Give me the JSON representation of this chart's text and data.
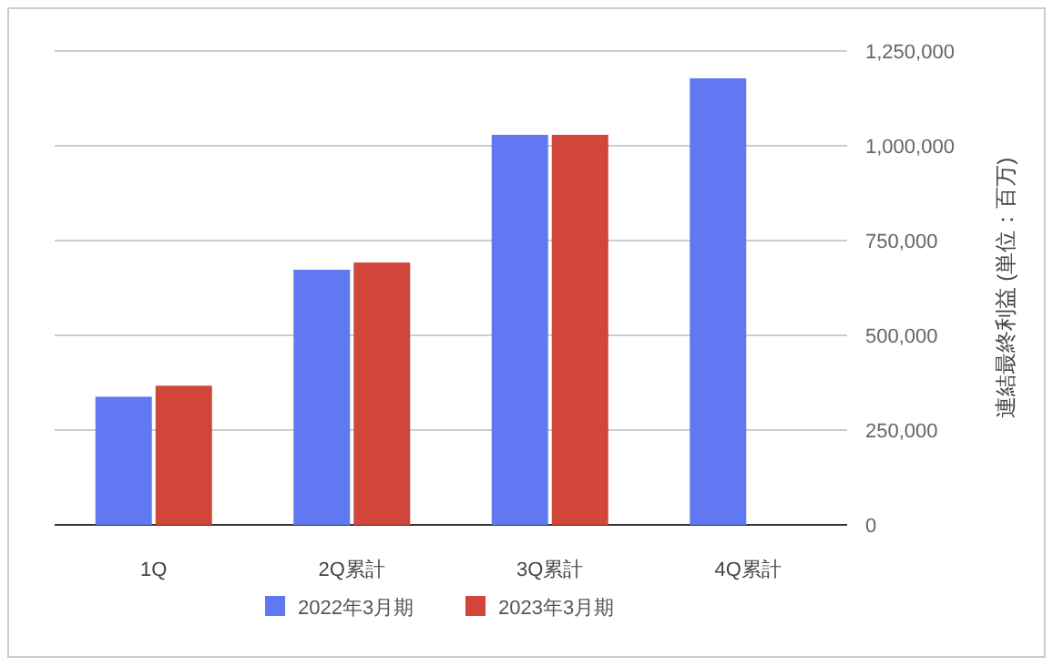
{
  "chart_data": {
    "type": "bar",
    "ylabel": "連結最終利益 (単位：百万)",
    "categories": [
      "1Q",
      "2Q累計",
      "3Q累計",
      "4Q累計"
    ],
    "series": [
      {
        "name": "2022年3月期",
        "color": "#6079f2",
        "values": [
          338000,
          673000,
          1029000,
          1178000
        ]
      },
      {
        "name": "2023年3月期",
        "color": "#d0463b",
        "values": [
          367000,
          692000,
          1029000,
          null
        ]
      }
    ],
    "ylim": [
      0,
      1250000
    ],
    "yticks": [
      {
        "value": 0,
        "label": "0"
      },
      {
        "value": 250000,
        "label": "250,000"
      },
      {
        "value": 500000,
        "label": "500,000"
      },
      {
        "value": 750000,
        "label": "750,000"
      },
      {
        "value": 1000000,
        "label": "1,000,000"
      },
      {
        "value": 1250000,
        "label": "1,250,000"
      }
    ],
    "grid": "y",
    "legend": "bottom"
  }
}
